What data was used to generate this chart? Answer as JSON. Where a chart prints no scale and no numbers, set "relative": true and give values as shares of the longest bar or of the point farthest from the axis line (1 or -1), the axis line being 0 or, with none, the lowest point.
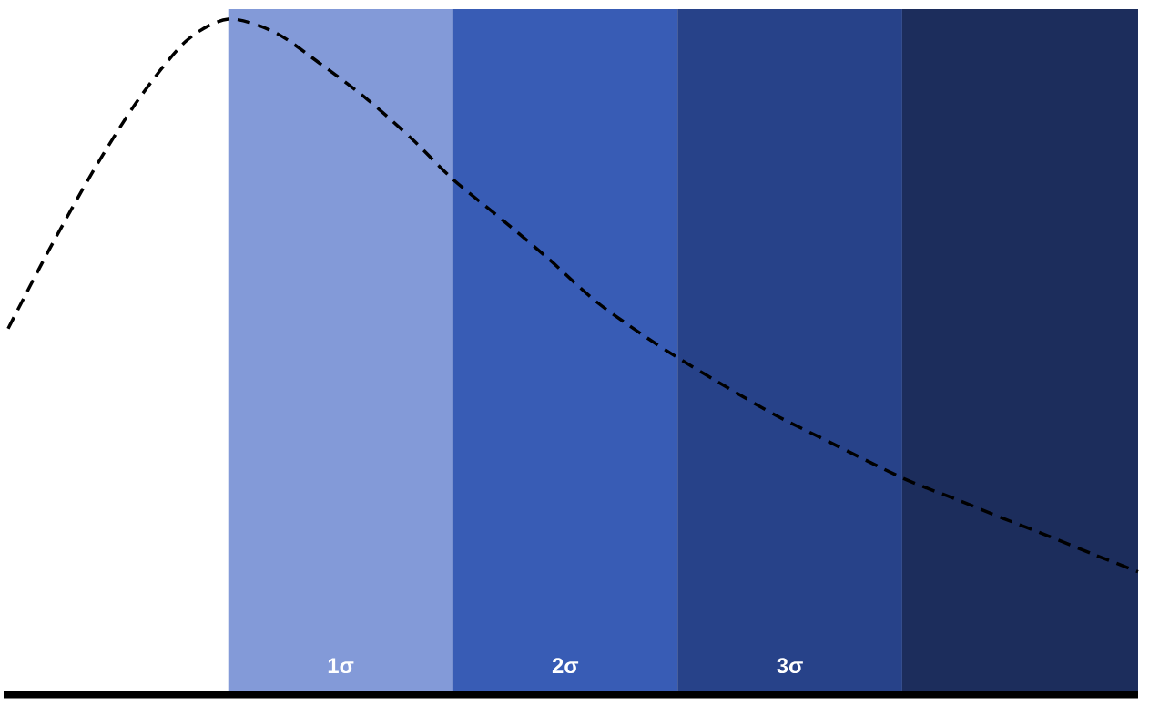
{
  "chart_data": {
    "type": "line",
    "relative": true,
    "x": [
      -0.98,
      -0.8,
      -0.6,
      -0.4,
      -0.19,
      0,
      0.21,
      0.41,
      0.62,
      0.82,
      1.0,
      1.22,
      1.43,
      1.63,
      1.83,
      2.0,
      2.23,
      2.44,
      2.64,
      3.0,
      3.25,
      3.45,
      3.65,
      3.85,
      4.05
    ],
    "series": [
      {
        "color": "#000000",
        "values": [
          0.542,
          0.657,
          0.776,
          0.881,
          0.967,
          1.0,
          0.98,
          0.934,
          0.881,
          0.822,
          0.763,
          0.703,
          0.644,
          0.584,
          0.536,
          0.499,
          0.453,
          0.413,
          0.38,
          0.321,
          0.288,
          0.261,
          0.235,
          0.208,
          0.182
        ]
      }
    ],
    "xlim": [
      -1,
      4.05
    ],
    "xticks": [
      {
        "value": 0.5,
        "label": "1σ"
      },
      {
        "value": 1.5,
        "label": "2σ"
      },
      {
        "value": 2.5,
        "label": "3σ"
      }
    ],
    "line_style": "dashed",
    "tick_labels": "x",
    "bands": [
      {
        "axis": "x",
        "from": 0,
        "to": 1,
        "color": "#839ad8"
      },
      {
        "axis": "x",
        "from": 1,
        "to": 2,
        "color": "#385cb5"
      },
      {
        "axis": "x",
        "from": 2,
        "to": 3,
        "color": "#274289"
      },
      {
        "axis": "x",
        "from": 3,
        "to": 4.05,
        "color": "#1c2d5c"
      }
    ]
  }
}
